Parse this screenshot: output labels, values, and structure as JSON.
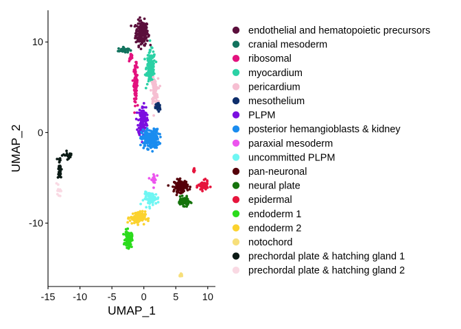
{
  "chart_data": {
    "type": "scatter",
    "title": "",
    "xlabel": "UMAP_1",
    "ylabel": "UMAP_2",
    "xlim": [
      -15,
      11.2
    ],
    "ylim": [
      -17,
      13.5
    ],
    "x_ticks": [
      -15,
      -10,
      -5,
      0,
      5,
      10
    ],
    "y_ticks": [
      -10,
      0,
      10
    ],
    "grid": false,
    "legend_position": "right",
    "series": [
      {
        "name": "endothelial and hematopoietic precursors",
        "color": "#5B0F3C",
        "clusters": [
          {
            "cx": -0.3,
            "cy": 11.0,
            "sx": 0.65,
            "sy": 0.9,
            "n": 200
          }
        ]
      },
      {
        "name": "cranial mesoderm",
        "color": "#12735E",
        "clusters": [
          {
            "cx": -3.2,
            "cy": 9.1,
            "sx": 0.55,
            "sy": 0.2,
            "n": 35
          }
        ]
      },
      {
        "name": "ribosomal",
        "color": "#E3127E",
        "clusters": [
          {
            "cx": -1.3,
            "cy": 5.5,
            "sx": 0.2,
            "sy": 1.3,
            "n": 90
          },
          {
            "cx": -2.0,
            "cy": 8.3,
            "sx": 0.2,
            "sy": 0.3,
            "n": 15
          }
        ]
      },
      {
        "name": "myocardium",
        "color": "#2BD1A5",
        "clusters": [
          {
            "cx": 1.1,
            "cy": 7.2,
            "sx": 0.45,
            "sy": 1.2,
            "n": 160
          }
        ]
      },
      {
        "name": "pericardium",
        "color": "#F6BFD2",
        "clusters": [
          {
            "cx": 1.7,
            "cy": 4.6,
            "sx": 0.35,
            "sy": 0.9,
            "n": 80
          }
        ]
      },
      {
        "name": "mesothelium",
        "color": "#0E2E6B",
        "clusters": [
          {
            "cx": 2.2,
            "cy": 2.8,
            "sx": 0.25,
            "sy": 0.35,
            "n": 35
          }
        ]
      },
      {
        "name": "PLPM",
        "color": "#7B0FE0",
        "clusters": [
          {
            "cx": -0.2,
            "cy": 1.3,
            "sx": 0.45,
            "sy": 1.1,
            "n": 150
          }
        ]
      },
      {
        "name": "posterior hemangioblasts & kidney",
        "color": "#1A8CEF",
        "clusters": [
          {
            "cx": 1.0,
            "cy": -0.7,
            "sx": 0.9,
            "sy": 0.7,
            "n": 210
          }
        ]
      },
      {
        "name": "paraxial mesoderm",
        "color": "#EC54EE",
        "clusters": [
          {
            "cx": 1.5,
            "cy": -5.2,
            "sx": 0.3,
            "sy": 0.5,
            "n": 20
          }
        ]
      },
      {
        "name": "uncommitted PLPM",
        "color": "#6FF6F3",
        "clusters": [
          {
            "cx": 1.2,
            "cy": -7.3,
            "sx": 0.8,
            "sy": 0.45,
            "n": 75
          }
        ]
      },
      {
        "name": "pan-neuronal",
        "color": "#55000A",
        "clusters": [
          {
            "cx": 5.8,
            "cy": -5.9,
            "sx": 0.7,
            "sy": 0.45,
            "n": 130
          }
        ]
      },
      {
        "name": "neural plate",
        "color": "#15730C",
        "clusters": [
          {
            "cx": 6.2,
            "cy": -7.6,
            "sx": 0.6,
            "sy": 0.3,
            "n": 70
          }
        ]
      },
      {
        "name": "epidermal",
        "color": "#E6153D",
        "clusters": [
          {
            "cx": 9.3,
            "cy": -5.9,
            "sx": 0.5,
            "sy": 0.35,
            "n": 70
          },
          {
            "cx": 7.9,
            "cy": -4.2,
            "sx": 0.15,
            "sy": 0.3,
            "n": 8
          }
        ]
      },
      {
        "name": "endoderm 1",
        "color": "#2BDB1C",
        "clusters": [
          {
            "cx": -2.4,
            "cy": -11.8,
            "sx": 0.35,
            "sy": 0.6,
            "n": 100
          }
        ]
      },
      {
        "name": "endoderm 2",
        "color": "#FBD22E",
        "clusters": [
          {
            "cx": -1.0,
            "cy": -9.4,
            "sx": 0.8,
            "sy": 0.45,
            "n": 110
          }
        ]
      },
      {
        "name": "notochord",
        "color": "#F7DF7A",
        "clusters": [
          {
            "cx": 5.8,
            "cy": -15.8,
            "sx": 0.12,
            "sy": 0.15,
            "n": 8
          }
        ]
      },
      {
        "name": "prechordal plate & hatching gland 1",
        "color": "#0B1A15",
        "clusters": [
          {
            "cx": -13.2,
            "cy": -4.0,
            "sx": 0.2,
            "sy": 0.9,
            "n": 35
          },
          {
            "cx": -11.7,
            "cy": -2.5,
            "sx": 0.6,
            "sy": 0.3,
            "n": 20
          }
        ]
      },
      {
        "name": "prechordal plate & hatching gland 2",
        "color": "#F9D9E3",
        "clusters": [
          {
            "cx": -13.3,
            "cy": -6.3,
            "sx": 0.2,
            "sy": 0.5,
            "n": 15
          }
        ]
      }
    ]
  }
}
